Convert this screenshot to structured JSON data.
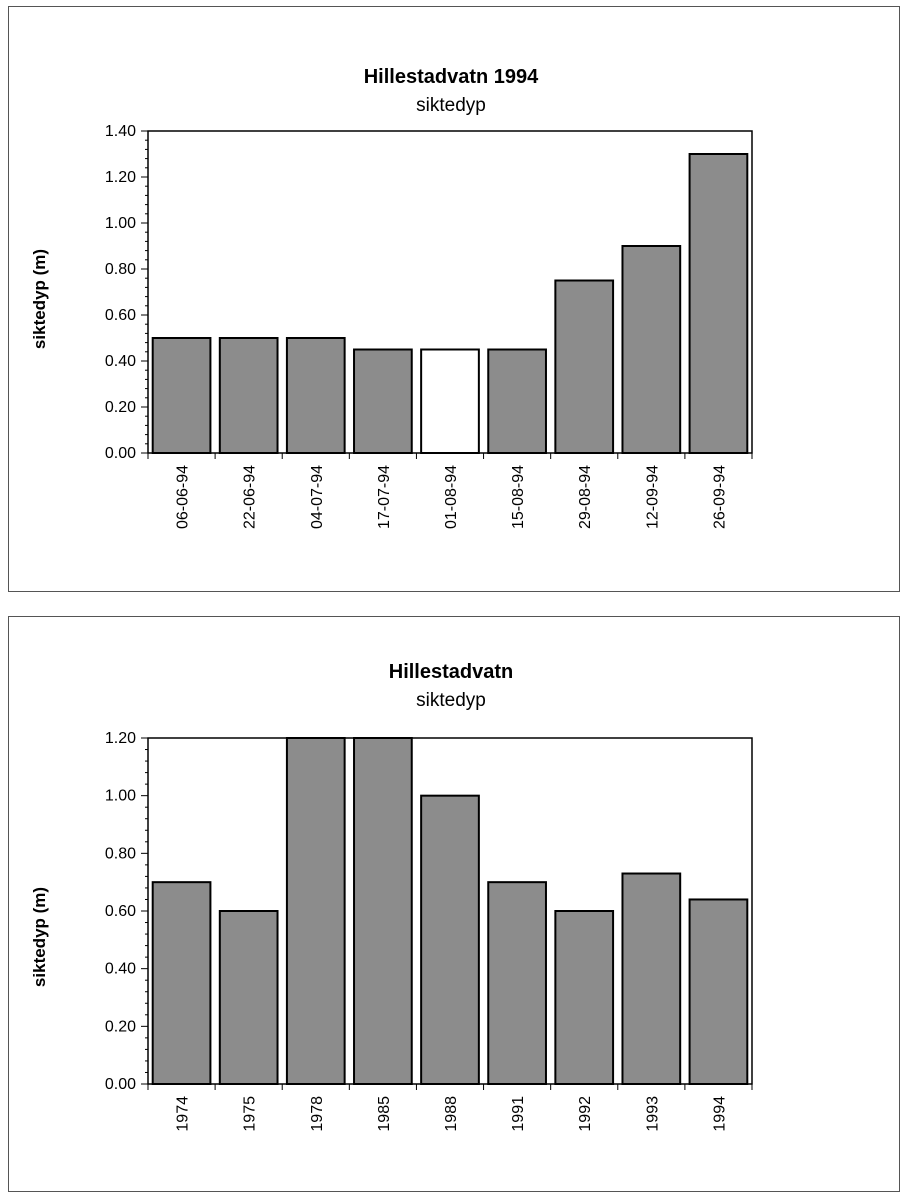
{
  "chart_data": [
    {
      "type": "bar",
      "title": "Hillestadvatn 1994",
      "subtitle": "siktedyp",
      "xlabel": "",
      "ylabel": "siktedyp (m)",
      "ylim": [
        0,
        1.4
      ],
      "yticks": [
        "0.00",
        "0.20",
        "0.40",
        "0.60",
        "0.80",
        "1.00",
        "1.20",
        "1.40"
      ],
      "categories": [
        "06-06-94",
        "22-06-94",
        "04-07-94",
        "17-07-94",
        "01-08-94",
        "15-08-94",
        "29-08-94",
        "12-09-94",
        "26-09-94"
      ],
      "values": [
        0.5,
        0.5,
        0.5,
        0.45,
        0.45,
        0.45,
        0.75,
        0.9,
        1.3
      ],
      "bar_colors": [
        "#8c8c8c",
        "#8c8c8c",
        "#8c8c8c",
        "#8c8c8c",
        "#ffffff",
        "#8c8c8c",
        "#8c8c8c",
        "#8c8c8c",
        "#8c8c8c"
      ],
      "grid": false,
      "legend": "none"
    },
    {
      "type": "bar",
      "title": "Hillestadvatn",
      "subtitle": "siktedyp",
      "xlabel": "",
      "ylabel": "siktedyp (m)",
      "ylim": [
        0,
        1.2
      ],
      "yticks": [
        "0.00",
        "0.20",
        "0.40",
        "0.60",
        "0.80",
        "1.00",
        "1.20"
      ],
      "categories": [
        "1974",
        "1975",
        "1978",
        "1985",
        "1988",
        "1991",
        "1992",
        "1993",
        "1994"
      ],
      "values": [
        0.7,
        0.6,
        1.2,
        1.2,
        1.0,
        0.7,
        0.6,
        0.73,
        0.64
      ],
      "bar_colors": [
        "#8c8c8c",
        "#8c8c8c",
        "#8c8c8c",
        "#8c8c8c",
        "#8c8c8c",
        "#8c8c8c",
        "#8c8c8c",
        "#8c8c8c",
        "#8c8c8c"
      ],
      "grid": false,
      "legend": "none"
    }
  ]
}
